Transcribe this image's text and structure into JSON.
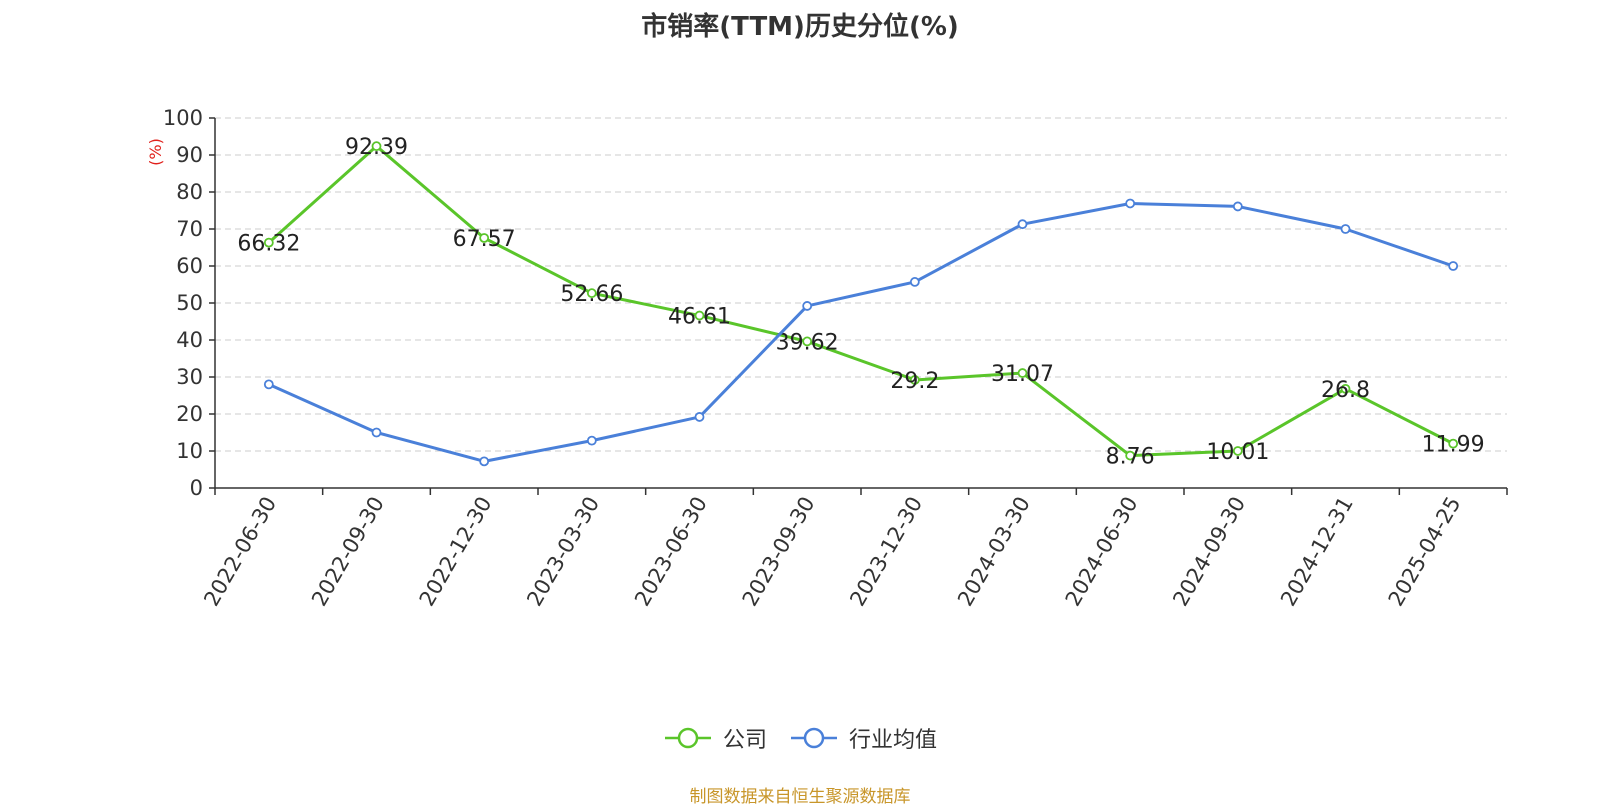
{
  "chart_data": {
    "type": "line",
    "title": "市销率(TTM)历史分位(%)",
    "ylabel": "(%)",
    "xlabel": "",
    "ylim": [
      0,
      100
    ],
    "y_ticks": [
      0,
      10,
      20,
      30,
      40,
      50,
      60,
      70,
      80,
      90,
      100
    ],
    "grid": true,
    "legend_position": "bottom-center",
    "categories": [
      "2022-06-30",
      "2022-09-30",
      "2022-12-30",
      "2023-03-30",
      "2023-06-30",
      "2023-09-30",
      "2023-12-30",
      "2024-03-30",
      "2024-06-30",
      "2024-09-30",
      "2024-12-31",
      "2025-04-25"
    ],
    "series": [
      {
        "name": "公司",
        "color": "#5ac52a",
        "show_labels": true,
        "values": [
          66.32,
          92.39,
          67.57,
          52.66,
          46.61,
          39.62,
          29.2,
          31.07,
          8.76,
          10.01,
          26.8,
          11.99
        ],
        "labels": [
          "66.32",
          "92.39",
          "67.57",
          "52.66",
          "46.61",
          "39.62",
          "29.2",
          "31.07",
          "8.76",
          "10.01",
          "26.8",
          "11.99"
        ]
      },
      {
        "name": "行业均值",
        "color": "#4a80d9",
        "show_labels": false,
        "values": [
          28,
          15,
          7.2,
          12.8,
          19.2,
          49.2,
          55.7,
          71.3,
          76.9,
          76.1,
          70,
          60
        ]
      }
    ]
  },
  "legend": {
    "items": [
      "公司",
      "行业均值"
    ]
  },
  "source_note": "制图数据来自恒生聚源数据库",
  "colors": {
    "ylabel": "#e0201b",
    "axis": "#333333",
    "grid": "#cccccc"
  }
}
